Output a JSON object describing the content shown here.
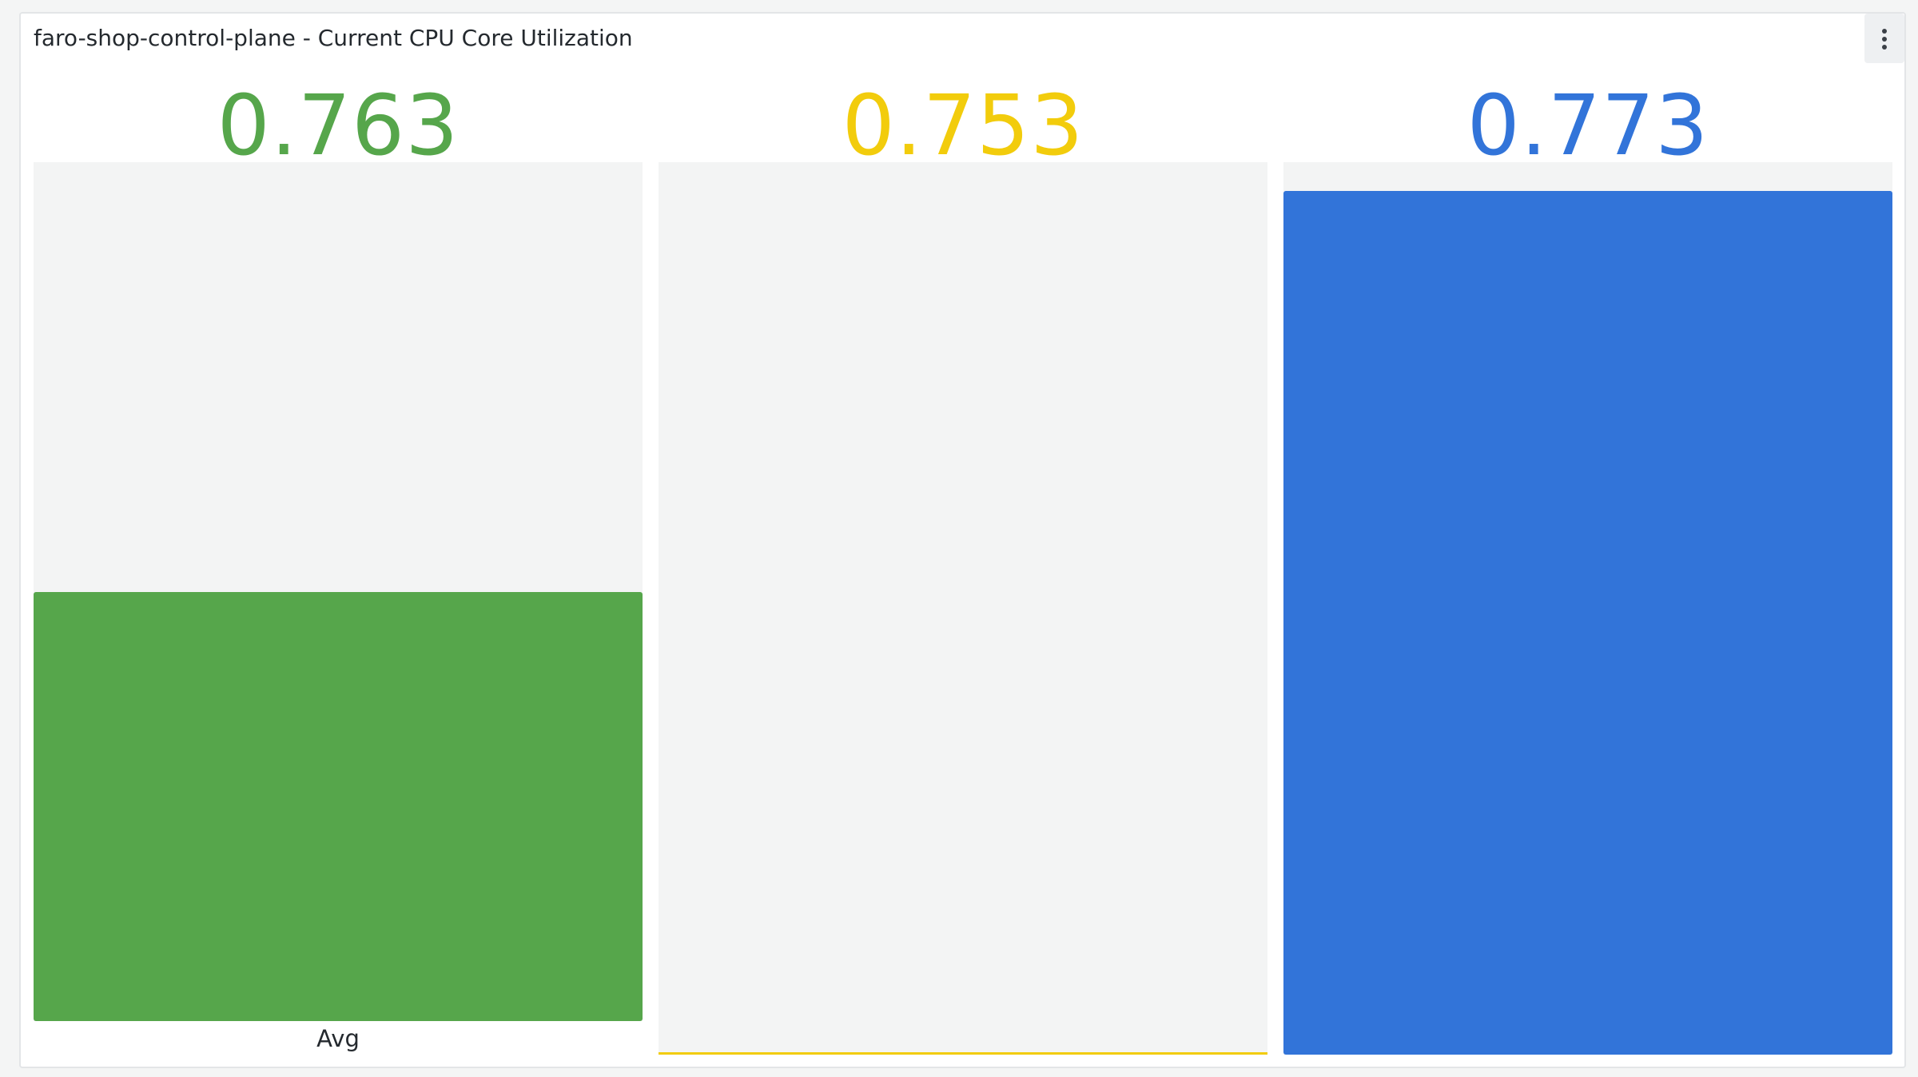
{
  "panel": {
    "title": "faro-shop-control-plane - Current CPU Core Utilization",
    "menu_icon": "kebab-menu-icon"
  },
  "gauges": [
    {
      "value": "0.763",
      "label": "Avg",
      "color": "#56a64b",
      "fill_fraction": 0.5
    },
    {
      "value": "0.753",
      "label": "",
      "color": "#f2cc0c",
      "fill_fraction": 0.003
    },
    {
      "value": "0.773",
      "label": "",
      "color": "#3274d9",
      "fill_fraction": 0.968
    }
  ]
}
